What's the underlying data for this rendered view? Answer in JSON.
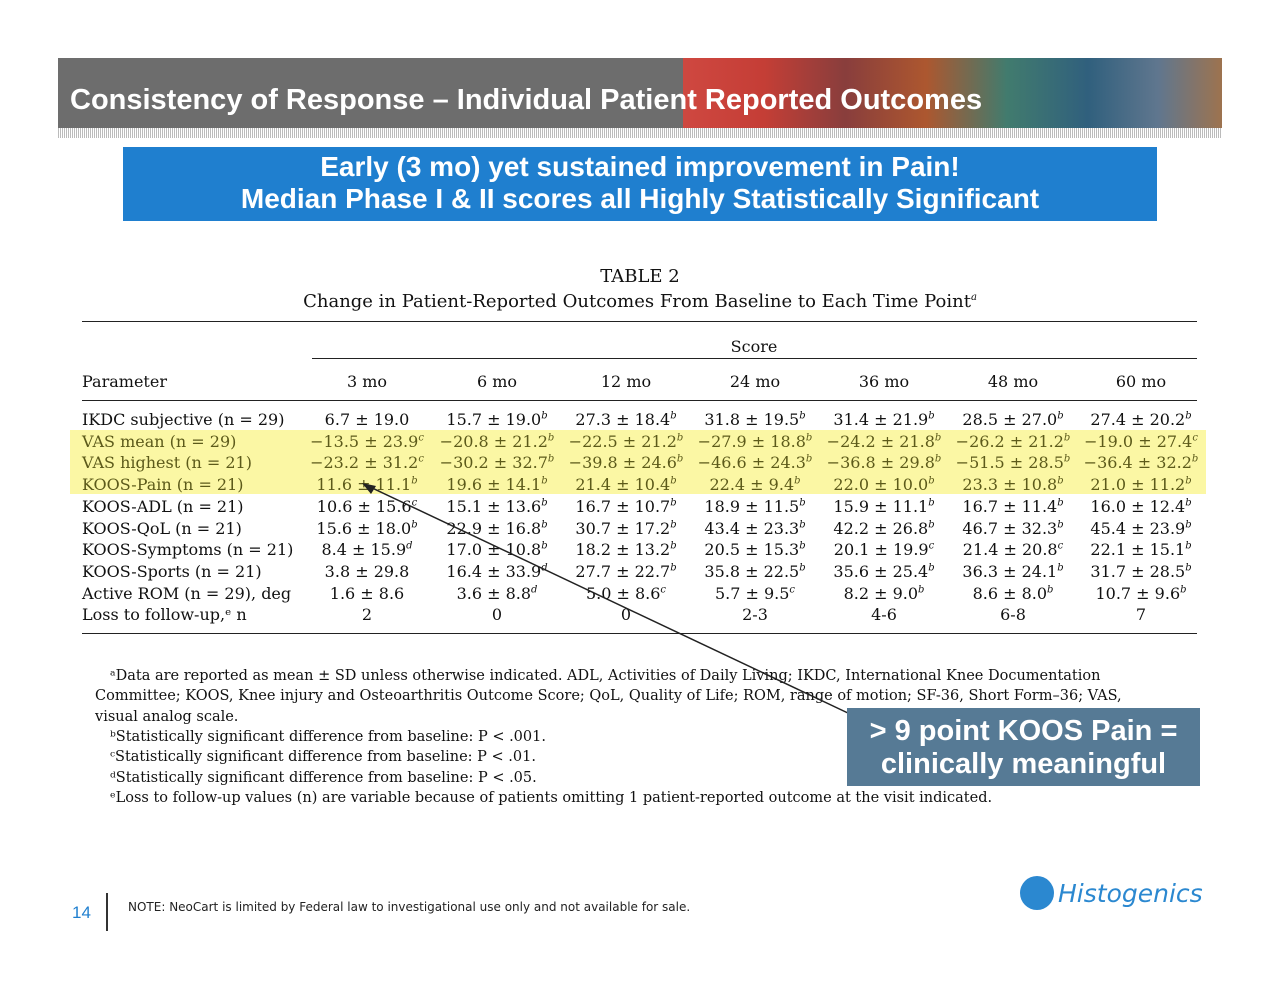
{
  "header": {
    "title": "Consistency of Response – Individual Patient Reported Outcomes"
  },
  "banner": {
    "line1": "Early (3 mo) yet sustained improvement in Pain!",
    "line2": "Median Phase I & II scores all Highly Statistically Significant"
  },
  "table": {
    "title": "TABLE 2",
    "subtitle": "Change in Patient-Reported Outcomes From Baseline to Each Time Point",
    "subtitle_sup": "a",
    "score_label": "Score",
    "param_header": "Parameter",
    "columns": [
      "3 mo",
      "6 mo",
      "12 mo",
      "24 mo",
      "36 mo",
      "48 mo",
      "60 mo"
    ],
    "rows": [
      {
        "label": "IKDC subjective (n = 29)",
        "highlight": false,
        "cells": [
          [
            "6.7 ± 19.0",
            ""
          ],
          [
            "15.7 ± 19.0",
            "b"
          ],
          [
            "27.3 ± 18.4",
            "b"
          ],
          [
            "31.8 ± 19.5",
            "b"
          ],
          [
            "31.4 ± 21.9",
            "b"
          ],
          [
            "28.5 ± 27.0",
            "b"
          ],
          [
            "27.4 ± 20.2",
            "b"
          ]
        ]
      },
      {
        "label": "VAS mean (n = 29)",
        "highlight": true,
        "cells": [
          [
            "−13.5 ± 23.9",
            "c"
          ],
          [
            "−20.8 ± 21.2",
            "b"
          ],
          [
            "−22.5 ± 21.2",
            "b"
          ],
          [
            "−27.9 ± 18.8",
            "b"
          ],
          [
            "−24.2 ± 21.8",
            "b"
          ],
          [
            "−26.2 ± 21.2",
            "b"
          ],
          [
            "−19.0 ± 27.4",
            "c"
          ]
        ]
      },
      {
        "label": "VAS highest (n = 21)",
        "highlight": true,
        "cells": [
          [
            "−23.2 ± 31.2",
            "c"
          ],
          [
            "−30.2 ± 32.7",
            "b"
          ],
          [
            "−39.8 ± 24.6",
            "b"
          ],
          [
            "−46.6 ± 24.3",
            "b"
          ],
          [
            "−36.8 ± 29.8",
            "b"
          ],
          [
            "−51.5 ± 28.5",
            "b"
          ],
          [
            "−36.4 ± 32.2",
            "b"
          ]
        ]
      },
      {
        "label": "KOOS-Pain (n = 21)",
        "highlight": true,
        "cells": [
          [
            "11.6 ± 11.1",
            "b"
          ],
          [
            "19.6 ± 14.1",
            "b"
          ],
          [
            "21.4 ± 10.4",
            "b"
          ],
          [
            "22.4 ± 9.4",
            "b"
          ],
          [
            "22.0 ± 10.0",
            "b"
          ],
          [
            "23.3 ± 10.8",
            "b"
          ],
          [
            "21.0 ± 11.2",
            "b"
          ]
        ]
      },
      {
        "label": "KOOS-ADL (n = 21)",
        "highlight": false,
        "cells": [
          [
            "10.6 ± 15.6",
            "c"
          ],
          [
            "15.1 ± 13.6",
            "b"
          ],
          [
            "16.7 ± 10.7",
            "b"
          ],
          [
            "18.9 ± 11.5",
            "b"
          ],
          [
            "15.9 ± 11.1",
            "b"
          ],
          [
            "16.7 ± 11.4",
            "b"
          ],
          [
            "16.0 ± 12.4",
            "b"
          ]
        ]
      },
      {
        "label": "KOOS-QoL (n = 21)",
        "highlight": false,
        "cells": [
          [
            "15.6 ± 18.0",
            "b"
          ],
          [
            "22.9 ± 16.8",
            "b"
          ],
          [
            "30.7 ± 17.2",
            "b"
          ],
          [
            "43.4 ± 23.3",
            "b"
          ],
          [
            "42.2 ± 26.8",
            "b"
          ],
          [
            "46.7 ± 32.3",
            "b"
          ],
          [
            "45.4 ± 23.9",
            "b"
          ]
        ]
      },
      {
        "label": "KOOS-Symptoms (n = 21)",
        "highlight": false,
        "cells": [
          [
            "8.4 ± 15.9",
            "d"
          ],
          [
            "17.0 ± 10.8",
            "b"
          ],
          [
            "18.2 ± 13.2",
            "b"
          ],
          [
            "20.5 ± 15.3",
            "b"
          ],
          [
            "20.1 ± 19.9",
            "c"
          ],
          [
            "21.4 ± 20.8",
            "c"
          ],
          [
            "22.1 ± 15.1",
            "b"
          ]
        ]
      },
      {
        "label": "KOOS-Sports (n = 21)",
        "highlight": false,
        "cells": [
          [
            "3.8 ± 29.8",
            ""
          ],
          [
            "16.4 ± 33.9",
            "d"
          ],
          [
            "27.7 ± 22.7",
            "b"
          ],
          [
            "35.8 ± 22.5",
            "b"
          ],
          [
            "35.6 ± 25.4",
            "b"
          ],
          [
            "36.3 ± 24.1",
            "b"
          ],
          [
            "31.7 ± 28.5",
            "b"
          ]
        ]
      },
      {
        "label": "Active ROM (n = 29), deg",
        "highlight": false,
        "cells": [
          [
            "1.6 ± 8.6",
            ""
          ],
          [
            "3.6 ± 8.8",
            "d"
          ],
          [
            "5.0 ± 8.6",
            "c"
          ],
          [
            "5.7 ± 9.5",
            "c"
          ],
          [
            "8.2 ± 9.0",
            "b"
          ],
          [
            "8.6 ± 8.0",
            "b"
          ],
          [
            "10.7 ± 9.6",
            "b"
          ]
        ]
      },
      {
        "label": "Loss to follow-up,ᵉ n",
        "highlight": false,
        "cells": [
          [
            "2",
            ""
          ],
          [
            "0",
            ""
          ],
          [
            "0",
            ""
          ],
          [
            "2-3",
            ""
          ],
          [
            "4-6",
            ""
          ],
          [
            "6-8",
            ""
          ],
          [
            "7",
            ""
          ]
        ]
      }
    ]
  },
  "footnotes": [
    "ᵃData are reported as mean ± SD unless otherwise indicated. ADL, Activities of Daily Living; IKDC, International Knee Documentation",
    "Committee; KOOS, Knee injury and Osteoarthritis Outcome Score; QoL, Quality of Life; ROM, range of motion; SF-36, Short Form–36; VAS,",
    "visual analog scale.",
    "ᵇStatistically significant difference from baseline: P < .001.",
    "ᶜStatistically significant difference from baseline: P < .01.",
    "ᵈStatistically significant difference from baseline: P < .05.",
    "ᵉLoss to follow-up values (n) are variable because of patients omitting 1 patient-reported outcome at the visit indicated."
  ],
  "callout": {
    "line1": "> 9 point  KOOS Pain =",
    "line2": "clinically meaningful"
  },
  "footer": {
    "page": "14",
    "note": "NOTE: NeoCart is limited by Federal law to investigational use only and not available for sale.",
    "logo": "Histogenics"
  },
  "colors": {
    "banner": "#1f7fcf",
    "callout": "#567a95",
    "highlight": "#fbf7a4"
  }
}
